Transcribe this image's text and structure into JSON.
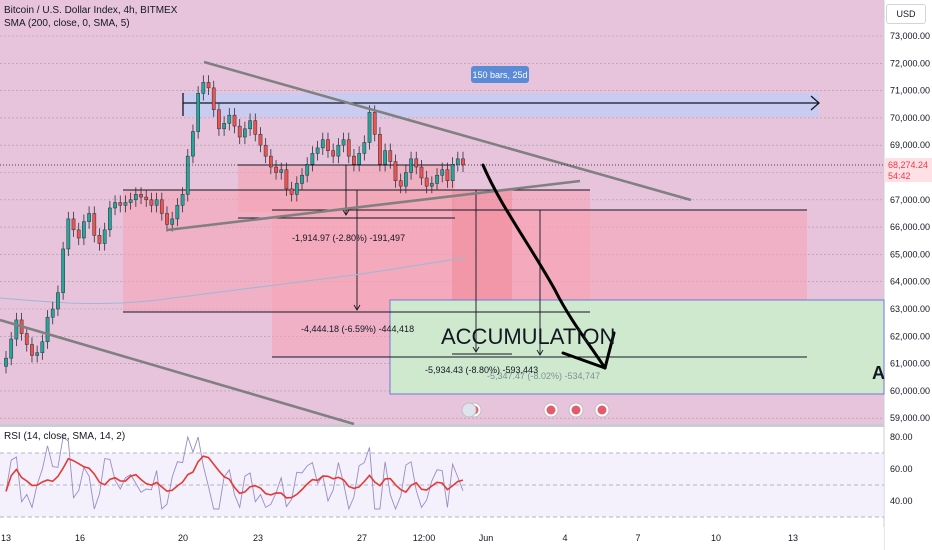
{
  "legend": {
    "title": "Bitcoin / U.S. Dollar Index, 4h, BITMEX",
    "indicator": "SMA (200, close, 0, SMA, 5)"
  },
  "currency_button": "USD",
  "rsi_legend": "RSI (14, close, SMA, 14, 2)",
  "price_axis": {
    "ticks": [
      "73,000.00",
      "72,000.00",
      "71,000.00",
      "70,000.00",
      "69,000.00",
      "68,000.00",
      "67,000.00",
      "66,000.00",
      "65,000.00",
      "64,000.00",
      "63,000.00",
      "62,000.00",
      "61,000.00",
      "60,000.00",
      "59,000.00"
    ],
    "last_price": "68,274.24",
    "countdown": "54:42",
    "price_label_color": "#f23645"
  },
  "rsi_axis": {
    "ticks": [
      "80.00",
      "60.00",
      "40.00"
    ]
  },
  "time_axis": {
    "ticks": [
      "13",
      "16",
      "20",
      "23",
      "27",
      "12:00",
      "Jun",
      "4",
      "7",
      "10",
      "13"
    ]
  },
  "annotations": {
    "bars_badge": "150 bars, 25d",
    "measure_1": "-1,914.97 (-2.80%) -191,497",
    "measure_2": "-4,444.18 (-6.59%) -444,418",
    "measure_3": "-5,934.43 (-8.80%) -593,443",
    "measure_4": "-5,347.47 (-8.02%) -534,747",
    "accumulation_text": "ACCUMULATION",
    "edge_letter": "A"
  },
  "colors": {
    "background_tint": "#e7c4dc",
    "red_zone": "#f7a3b4",
    "green_zone": "#cfe9cf",
    "blue_range": "#c3cdf3",
    "candle_up": "#26a69a",
    "candle_down": "#ef5350",
    "sma_line": "#a0b8d6",
    "rsi_line": "#7e57c2",
    "rsi_sma": "#e53935"
  },
  "chart_data": {
    "type": "candlestick",
    "title": "Bitcoin / U.S. Dollar Index, 4h, BITMEX",
    "ylim": [
      58800,
      73400
    ],
    "x_ticks": [
      "13",
      "16",
      "20",
      "23",
      "27",
      "12:00",
      "Jun",
      "4",
      "7",
      "10",
      "13"
    ],
    "close": [
      61200,
      61900,
      62600,
      62100,
      61700,
      61300,
      61400,
      61800,
      62700,
      63000,
      63600,
      65200,
      66300,
      65900,
      65600,
      66200,
      66500,
      65700,
      65400,
      65900,
      66700,
      66900,
      66800,
      66900,
      67000,
      67200,
      67100,
      67000,
      66800,
      67000,
      66500,
      66100,
      66300,
      66800,
      67200,
      68600,
      69500,
      70900,
      71300,
      71100,
      70300,
      69600,
      69800,
      70100,
      69700,
      69300,
      69600,
      69900,
      69400,
      69000,
      68600,
      68200,
      68000,
      68100,
      67400,
      67200,
      67600,
      67900,
      68300,
      68700,
      68900,
      69200,
      68800,
      68600,
      69000,
      69200,
      68600,
      68300,
      68700,
      69100,
      70200,
      69400,
      68300,
      68800,
      68400,
      67700,
      67500,
      68000,
      68500,
      68200,
      67800,
      67500,
      67600,
      67900,
      68100,
      67700,
      68300,
      68500,
      68274
    ],
    "sma200": [
      63400,
      63350,
      63300,
      63260,
      63220,
      63200,
      63200,
      63220,
      63260,
      63320,
      63400,
      63480,
      63560,
      63640,
      63720,
      63800,
      63880,
      63960,
      64040,
      64120,
      64200,
      64280,
      64380,
      64480,
      64580,
      64680,
      64780,
      64880
    ]
  }
}
